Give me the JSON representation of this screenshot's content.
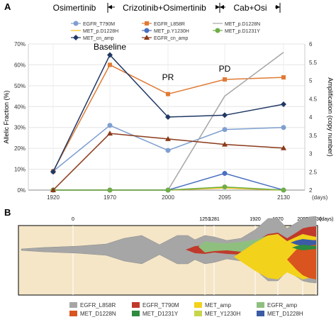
{
  "chart_data": [
    {
      "panel": "A",
      "type": "line",
      "phases": [
        "Osimertinib",
        "Crizotinib+Osimertinib",
        "Cab+Osi"
      ],
      "legend": [
        "EGFR_T790M",
        "EGFR_L858R",
        "MET_p.D1228N",
        "MET_p.D1228H",
        "MET_p.Y1230H",
        "MET_p.D1231Y",
        "MET_cn_amp",
        "EGFR_cn_amp"
      ],
      "x": [
        1920,
        1970,
        2000,
        2095,
        2130
      ],
      "x_tick_labels": [
        "1920",
        "1970",
        "2000",
        "2095",
        "2130"
      ],
      "x_unit": "(days)",
      "ylabel": "Allelic Fraction (%)",
      "y_tick_labels": [
        "0%",
        "10%",
        "20%",
        "30%",
        "40%",
        "50%",
        "60%",
        "70%"
      ],
      "ylim": [
        0,
        70
      ],
      "y2label": "Amplification (copy number)",
      "y2_tick_labels": [
        "2",
        "2.5",
        "3",
        "3.5",
        "4",
        "4.5",
        "5",
        "5.5",
        "6"
      ],
      "y2lim": [
        2,
        6
      ],
      "annotations": [
        "Baseline",
        "PR",
        "PD"
      ],
      "series": [
        {
          "name": "EGFR_T790M",
          "axis": "left",
          "color": "#7f9fd0",
          "marker": "circle",
          "values": [
            9,
            31,
            19,
            29,
            30
          ]
        },
        {
          "name": "EGFR_L858R",
          "axis": "left",
          "color": "#e07b35",
          "marker": "square",
          "values": [
            9,
            60,
            46,
            53,
            54
          ]
        },
        {
          "name": "MET_p.D1228N",
          "axis": "left",
          "color": "#a6a6a6",
          "marker": "none",
          "values": [
            0,
            0,
            0,
            45,
            66
          ]
        },
        {
          "name": "MET_p.D1228H",
          "axis": "left",
          "color": "#f2c40f",
          "marker": "none",
          "values": [
            0,
            0,
            0,
            1,
            0
          ]
        },
        {
          "name": "MET_p.Y1230H",
          "axis": "left",
          "color": "#4a6fc0",
          "marker": "circle",
          "values": [
            0,
            0,
            0,
            8,
            0
          ]
        },
        {
          "name": "MET_p.D1231Y",
          "axis": "left",
          "color": "#70ad47",
          "marker": "circle",
          "values": [
            0,
            0,
            0,
            1.5,
            0
          ]
        },
        {
          "name": "MET_cn_amp",
          "axis": "right",
          "color": "#203864",
          "marker": "diamond",
          "values": [
            2.5,
            5.7,
            4.0,
            4.05,
            4.35
          ]
        },
        {
          "name": "EGFR_cn_amp",
          "axis": "right",
          "color": "#8b3a1a",
          "marker": "triangle",
          "values": [
            2.0,
            3.55,
            3.4,
            3.25,
            3.15
          ]
        }
      ]
    },
    {
      "panel": "B",
      "type": "area",
      "x_tick_labels": [
        "0",
        "1251",
        "1281",
        "1920",
        "1970",
        "2095",
        "2130"
      ],
      "x_unit": "(days)",
      "legend": [
        "EGFR_L858R",
        "EGFR_T790M",
        "MET_amp",
        "EGFR_amp",
        "MET_D1228N",
        "MET_D1231Y",
        "MET_Y1230H",
        "MET_D1228H"
      ],
      "colors": {
        "EGFR_L858R": "#a6a6a6",
        "EGFR_T790M": "#c0392b",
        "MET_amp": "#f2d21b",
        "EGFR_amp": "#8fbf7f",
        "MET_D1228N": "#d9541e",
        "MET_D1231Y": "#2e8b3f",
        "MET_Y1230H": "#c8d44a",
        "MET_D1228H": "#3b5ba5",
        "background": "#f5e6c8"
      }
    }
  ],
  "labels": {
    "panel_a": "A",
    "panel_b": "B"
  }
}
